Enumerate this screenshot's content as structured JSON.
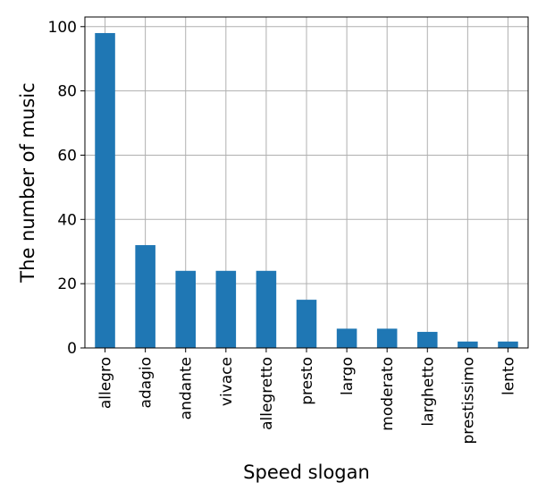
{
  "chart_data": {
    "type": "bar",
    "categories": [
      "allegro",
      "adagio",
      "andante",
      "vivace",
      "allegretto",
      "presto",
      "largo",
      "moderato",
      "larghetto",
      "prestissimo",
      "lento"
    ],
    "values": [
      98,
      32,
      24,
      24,
      24,
      15,
      6,
      6,
      5,
      2,
      2
    ],
    "xlabel": "Speed slogan",
    "ylabel": "The number of music",
    "ylim": [
      0,
      103
    ],
    "yticks": [
      0,
      20,
      40,
      60,
      80,
      100
    ],
    "grid": true,
    "bar_color": "#1f77b4"
  }
}
